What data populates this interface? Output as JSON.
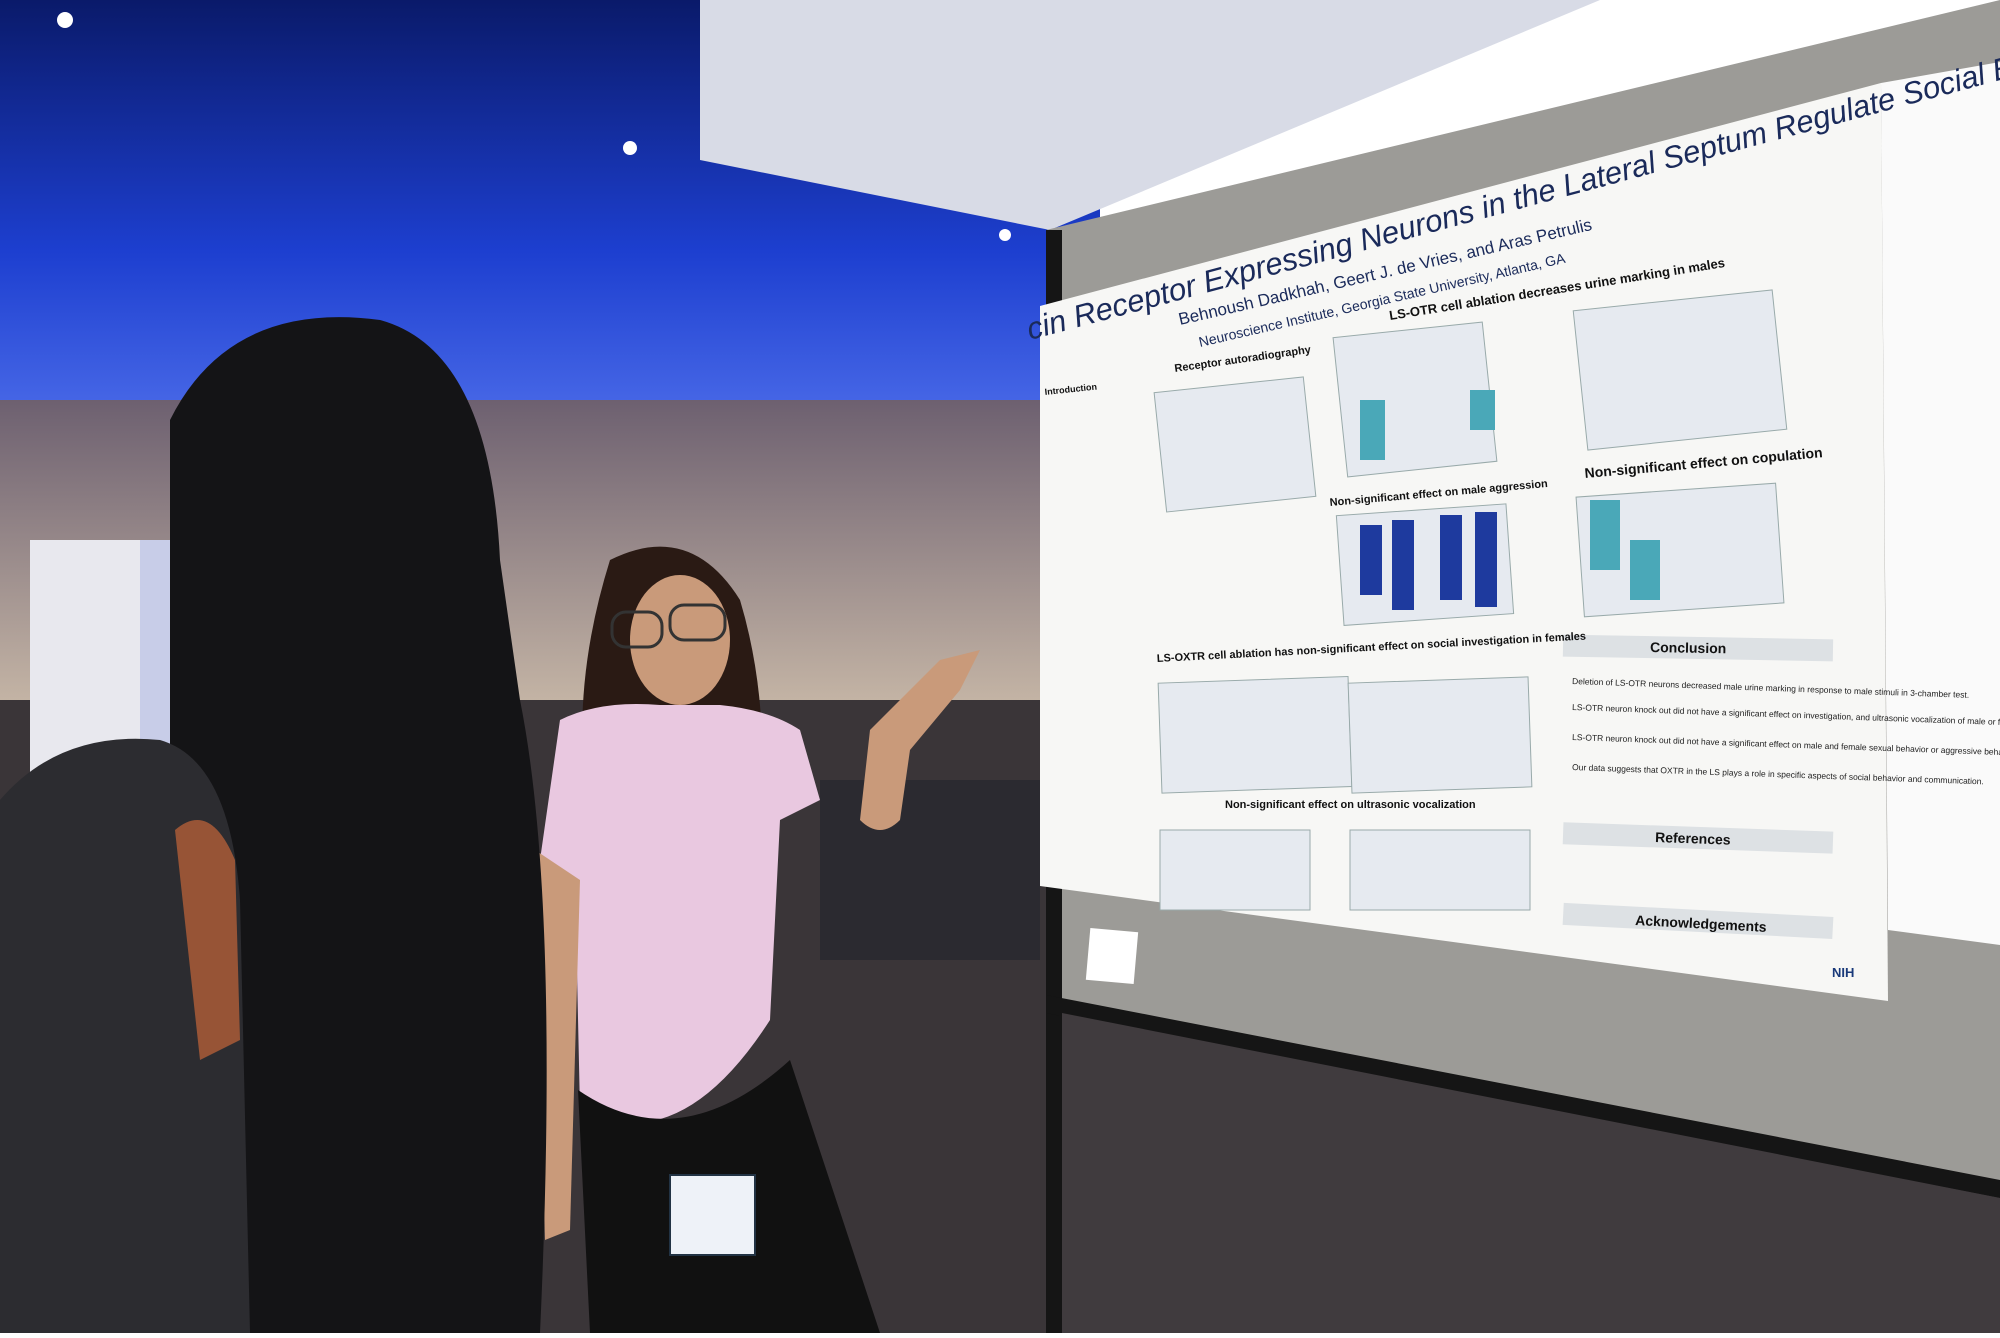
{
  "poster": {
    "title": "cin Receptor Expressing Neurons in the Lateral Septum Regulate Social Behavior in Mice",
    "authors": "Behnoush Dadkhah, Geert J. de Vries, and Aras Petrulis",
    "affiliation": "Neuroscience Institute, Georgia State University, Atlanta, GA",
    "sections": {
      "introduction": "Introduction",
      "autoradiography": "Receptor autoradiography",
      "urine": "LS-OTR cell ablation decreases urine marking in males",
      "aggression": "Non-significant effect on male aggression",
      "copulation": "Non-significant effect on copulation",
      "investigation": "LS-OXTR cell ablation has non-significant effect on social investigation in females",
      "vocalization": "Non-significant effect on ultrasonic vocalization",
      "conclusion": "Conclusion",
      "references": "References",
      "acknowledgements": "Acknowledgements"
    },
    "conclusion_bullets": [
      "Deletion of LS-OTR neurons decreased male urine marking in response to male stimuli in 3-chamber test.",
      "LS-OTR neuron knock out did not have a significant effect on investigation, and ultrasonic vocalization of male or female mice.",
      "LS-OTR neuron knock out did not have a significant effect on male and female sexual behavior or aggressive behavior.",
      "Our data suggests that OXTR in the LS plays a role in specific aspects of social behavior and communication."
    ],
    "logo": "NIH"
  }
}
